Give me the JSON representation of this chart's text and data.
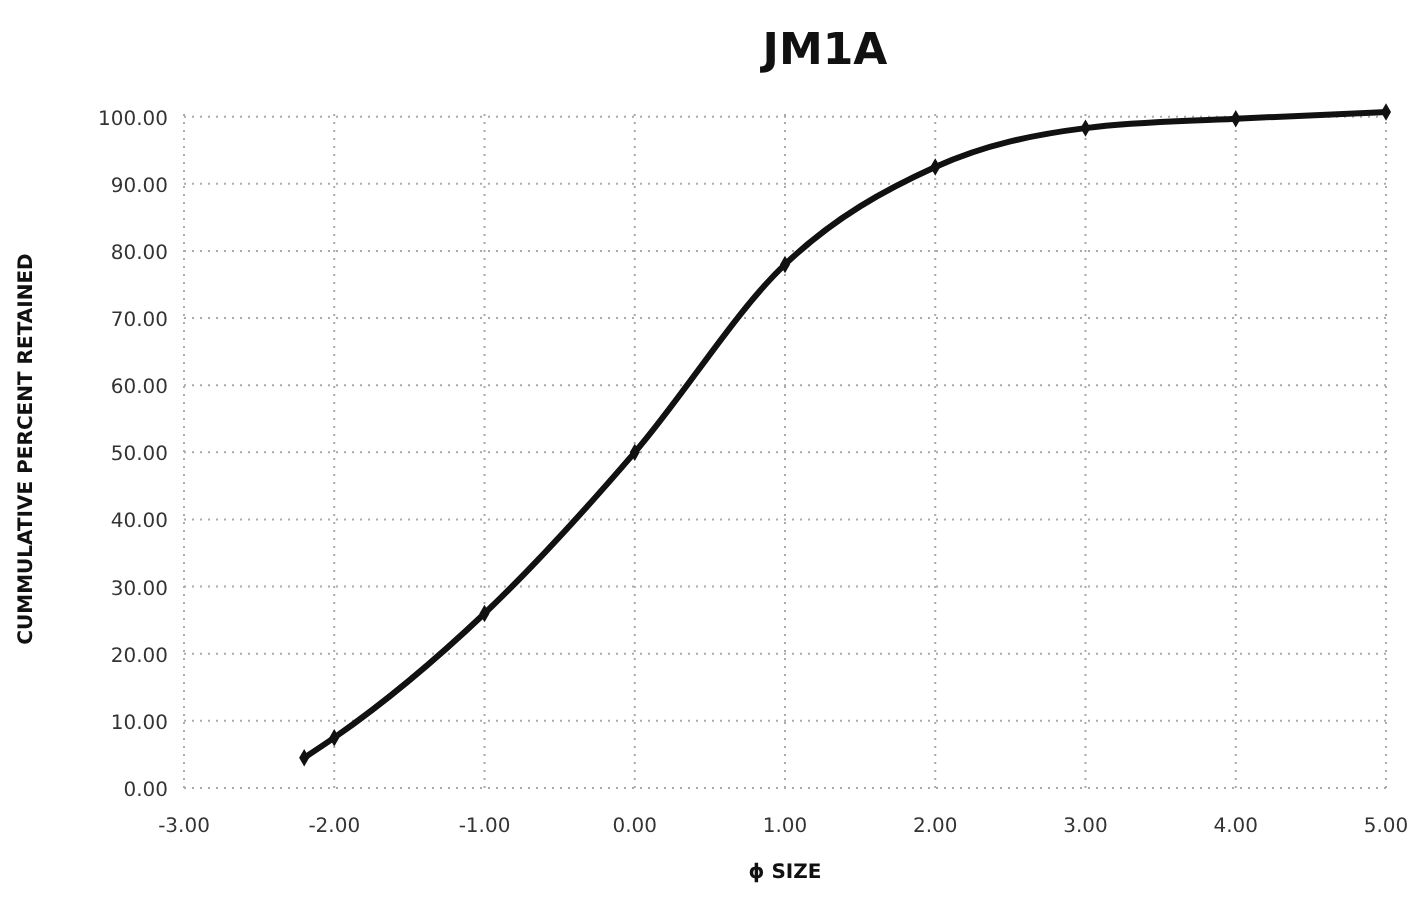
{
  "chart_data": {
    "type": "line",
    "title": "JM1A",
    "xlabel": "ϕ SIZE",
    "ylabel": "CUMMULATIVE PERCENT RETAINED",
    "x": [
      -2.2,
      -2,
      -1,
      0,
      1,
      2,
      3,
      4,
      5
    ],
    "series": [
      {
        "color": "#111111",
        "values": [
          4.5,
          7.5,
          26,
          50,
          78,
          92.5,
          98.3,
          99.7,
          100.7
        ]
      }
    ],
    "xlim": [
      -3,
      5
    ],
    "xticks": [
      {
        "value": -3,
        "label": "-3.00"
      },
      {
        "value": -2,
        "label": "-2.00"
      },
      {
        "value": -1,
        "label": "-1.00"
      },
      {
        "value": 0,
        "label": "0.00"
      },
      {
        "value": 1,
        "label": "1.00"
      },
      {
        "value": 2,
        "label": "2.00"
      },
      {
        "value": 3,
        "label": "3.00"
      },
      {
        "value": 4,
        "label": "4.00"
      },
      {
        "value": 5,
        "label": "5.00"
      }
    ],
    "ylim": [
      0,
      101
    ],
    "yticks": [
      {
        "value": 0,
        "label": "0.00"
      },
      {
        "value": 10,
        "label": "10.00"
      },
      {
        "value": 20,
        "label": "20.00"
      },
      {
        "value": 30,
        "label": "30.00"
      },
      {
        "value": 40,
        "label": "40.00"
      },
      {
        "value": 50,
        "label": "50.00"
      },
      {
        "value": 60,
        "label": "60.00"
      },
      {
        "value": 70,
        "label": "70.00"
      },
      {
        "value": 80,
        "label": "80.00"
      },
      {
        "value": 90,
        "label": "90.00"
      },
      {
        "value": 100,
        "label": "100.00"
      }
    ],
    "grid": true,
    "marker": "diamond",
    "line_style": "solid"
  }
}
